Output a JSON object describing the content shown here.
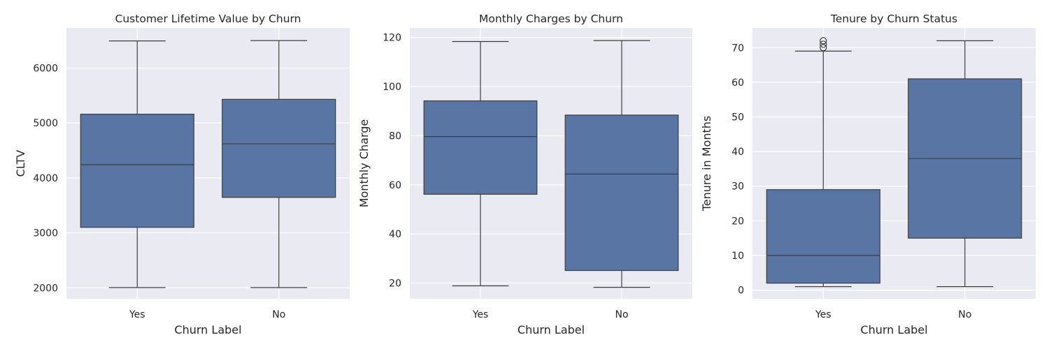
{
  "figure": {
    "background": "#ffffff",
    "panel_color": "#eaeaf2",
    "grid_color": "#ffffff",
    "box_color": "#5875a4",
    "line_color": "#3d3d3d"
  },
  "chart_data": [
    {
      "type": "box",
      "title": "Customer Lifetime Value by Churn",
      "xlabel": "Churn Label",
      "ylabel": "CLTV",
      "categories": [
        "Yes",
        "No"
      ],
      "ylim": [
        1800,
        6730
      ],
      "yticks": [
        2000,
        3000,
        4000,
        5000,
        6000
      ],
      "ytick_labels": [
        "2000",
        "3000",
        "4000",
        "5000",
        "6000"
      ],
      "grid": true,
      "boxes": [
        {
          "category": "Yes",
          "whislo": 2003,
          "q1": 3100,
          "med": 4240,
          "q3": 5160,
          "whishi": 6493,
          "fliers": []
        },
        {
          "category": "No",
          "whislo": 2003,
          "q1": 3645,
          "med": 4620,
          "q3": 5430,
          "whishi": 6500,
          "fliers": []
        }
      ]
    },
    {
      "type": "box",
      "title": "Monthly Charges by Churn",
      "xlabel": "Churn Label",
      "ylabel": "Monthly Charge",
      "categories": [
        "Yes",
        "No"
      ],
      "ylim": [
        13.6,
        123.9
      ],
      "yticks": [
        20,
        40,
        60,
        80,
        100,
        120
      ],
      "ytick_labels": [
        "20",
        "40",
        "60",
        "80",
        "100",
        "120"
      ],
      "grid": true,
      "boxes": [
        {
          "category": "Yes",
          "whislo": 18.85,
          "q1": 56.15,
          "med": 79.65,
          "q3": 94.2,
          "whishi": 118.35,
          "fliers": []
        },
        {
          "category": "No",
          "whislo": 18.25,
          "q1": 25.1,
          "med": 64.4,
          "q3": 88.4,
          "whishi": 118.75,
          "fliers": []
        }
      ]
    },
    {
      "type": "box",
      "title": "Tenure by Churn Status",
      "xlabel": "Churn Label",
      "ylabel": "Tenure in Months",
      "categories": [
        "Yes",
        "No"
      ],
      "ylim": [
        -2.5,
        75.7
      ],
      "yticks": [
        0,
        10,
        20,
        30,
        40,
        50,
        60,
        70
      ],
      "ytick_labels": [
        "0",
        "10",
        "20",
        "30",
        "40",
        "50",
        "60",
        "70"
      ],
      "grid": true,
      "boxes": [
        {
          "category": "Yes",
          "whislo": 1,
          "q1": 2,
          "med": 10,
          "q3": 29,
          "whishi": 69,
          "fliers": [
            70,
            71,
            72
          ]
        },
        {
          "category": "No",
          "whislo": 1,
          "q1": 15,
          "med": 38,
          "q3": 61,
          "whishi": 72,
          "fliers": []
        }
      ]
    }
  ]
}
